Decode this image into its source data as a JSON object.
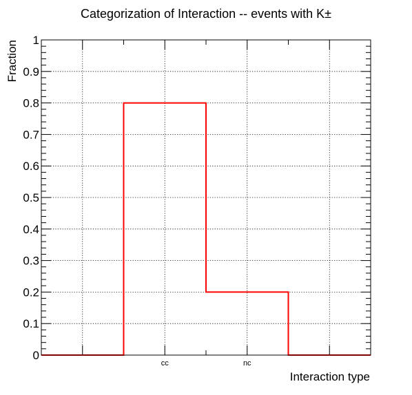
{
  "chart_data": {
    "type": "bar",
    "title": "Categorization of Interaction -- events with K±",
    "xlabel": "Interaction type",
    "ylabel": "Fraction",
    "categories": [
      "",
      "cc",
      "nc",
      ""
    ],
    "values": [
      0,
      0.8,
      0.2,
      0
    ],
    "ylim": [
      0,
      1
    ],
    "yticks": [
      "0",
      "0.1",
      "0.2",
      "0.3",
      "0.4",
      "0.5",
      "0.6",
      "0.7",
      "0.8",
      "0.9",
      "1"
    ],
    "grid": true,
    "style": "histogram-step",
    "line_color": "#ff0000"
  }
}
